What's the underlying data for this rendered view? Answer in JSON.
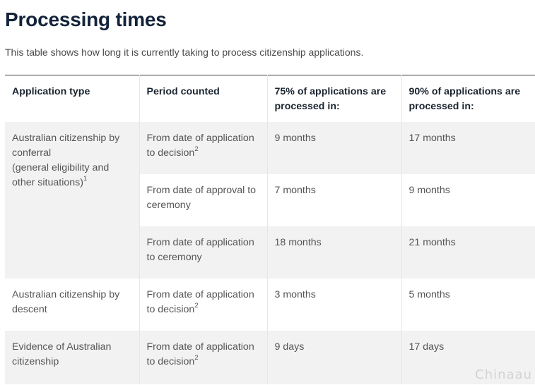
{
  "page": {
    "title": "Processing times",
    "intro": "This table shows how long it is currently taking to process citizenship applications."
  },
  "table": {
    "headers": [
      "Application type",
      "Period counted",
      "75% of applications are processed in:",
      "90% of applications are processed in:"
    ],
    "rows": [
      {
        "type_main": "Australian citizenship by conferral",
        "type_sub": "(general eligibility and other situations)",
        "type_note": "1",
        "periods": [
          {
            "period": "From date of application to decision",
            "note": "2",
            "p75": "9 months",
            "p90": "17 months"
          },
          {
            "period": "From date of approval to ceremony",
            "note": "",
            "p75": "7 months",
            "p90": "9 months"
          },
          {
            "period": "From date of application to ceremony",
            "note": "",
            "p75": "18 months",
            "p90": "21 months"
          }
        ]
      },
      {
        "type_main": "Australian citizenship by descent",
        "periods": [
          {
            "period": "From date of application to decision",
            "note": "2",
            "p75": "3 months",
            "p90": "5 months"
          }
        ]
      },
      {
        "type_main": "Evidence of Australian citizenship",
        "periods": [
          {
            "period": "From date of application to decision",
            "note": "2",
            "p75": "9 days",
            "p90": "17 days"
          }
        ]
      }
    ]
  },
  "watermark": "Chinaau"
}
